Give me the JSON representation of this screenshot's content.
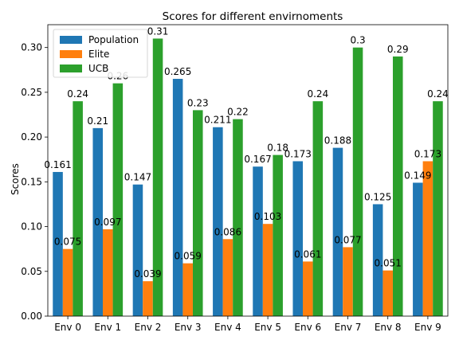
{
  "chart_data": {
    "type": "bar",
    "title": "Scores for different envirnoments",
    "xlabel": "",
    "ylabel": "Scores",
    "categories": [
      "Env 0",
      "Env 1",
      "Env 2",
      "Env 3",
      "Env 4",
      "Env 5",
      "Env 6",
      "Env 7",
      "Env 8",
      "Env 9"
    ],
    "series": [
      {
        "name": "Population",
        "color": "#1f77b4",
        "values": [
          0.161,
          0.21,
          0.147,
          0.265,
          0.211,
          0.167,
          0.173,
          0.188,
          0.125,
          0.149
        ],
        "labels": [
          "0.161",
          "0.21",
          "0.147",
          "0.265",
          "0.211",
          "0.167",
          "0.173",
          "0.188",
          "0.125",
          "0.149"
        ]
      },
      {
        "name": "Elite",
        "color": "#ff7f0e",
        "values": [
          0.075,
          0.097,
          0.039,
          0.059,
          0.086,
          0.103,
          0.061,
          0.077,
          0.051,
          0.173
        ],
        "labels": [
          "0.075",
          "0.097",
          "0.039",
          "0.059",
          "0.086",
          "0.103",
          "0.061",
          "0.077",
          "0.051",
          "0.173"
        ]
      },
      {
        "name": "UCB",
        "color": "#2ca02c",
        "values": [
          0.24,
          0.26,
          0.31,
          0.23,
          0.22,
          0.18,
          0.24,
          0.3,
          0.29,
          0.24
        ],
        "labels": [
          "0.24",
          "0.26",
          "0.31",
          "0.23",
          "0.22",
          "0.18",
          "0.24",
          "0.3",
          "0.29",
          "0.24"
        ]
      }
    ],
    "ylim": [
      0,
      0.3255
    ],
    "yticks": [
      "0.00",
      "0.05",
      "0.10",
      "0.15",
      "0.20",
      "0.25",
      "0.30"
    ],
    "ytick_values": [
      0,
      0.05,
      0.1,
      0.15,
      0.2,
      0.25,
      0.3
    ],
    "grid": false,
    "legend_position": "top-left"
  }
}
